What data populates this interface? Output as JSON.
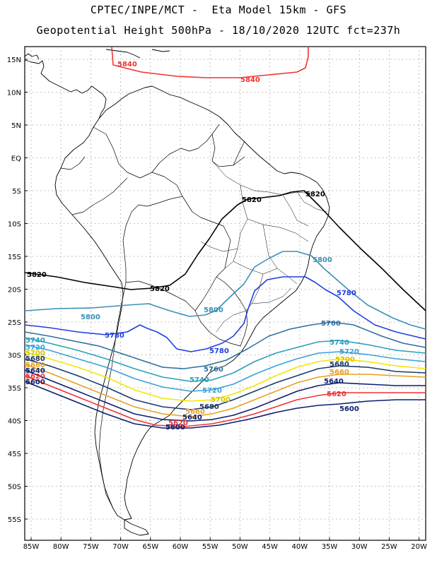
{
  "header": {
    "line1": "CPTEC/INPE/MCT -  Eta Model 15km - GFS",
    "line2": "Geopotential Height 500hPa - 18/10/2020 12UTC fct=237h"
  },
  "axes": {
    "lat_labels": [
      "15N",
      "10N",
      "5N",
      "EQ",
      "5S",
      "10S",
      "15S",
      "20S",
      "25S",
      "30S",
      "35S",
      "40S",
      "45S",
      "50S",
      "55S"
    ],
    "lon_labels": [
      "85W",
      "80W",
      "75W",
      "70W",
      "65W",
      "60W",
      "55W",
      "50W",
      "45W",
      "40W",
      "35W",
      "30W",
      "25W",
      "20W"
    ]
  },
  "contours": [
    {
      "value": 5840,
      "color": "#ee3333",
      "labels": [
        "5840",
        "5840"
      ]
    },
    {
      "value": 5820,
      "color": "#000000",
      "labels": [
        "5820",
        "5820",
        "5820",
        "5820"
      ]
    },
    {
      "value": 5800,
      "color": "#3a8fb7",
      "labels": [
        "5800",
        "5800",
        "5800"
      ]
    },
    {
      "value": 5780,
      "color": "#1f3fe0",
      "labels": [
        "5780",
        "5780",
        "5780"
      ]
    },
    {
      "value": 5760,
      "color": "#2e6f9e",
      "labels": [
        "5760",
        "5760"
      ]
    },
    {
      "value": 5740,
      "color": "#2a9fb8",
      "labels": [
        "5740",
        "5740",
        "5740"
      ]
    },
    {
      "value": 5720,
      "color": "#3aa0d8",
      "labels": [
        "5720",
        "5720",
        "5720"
      ]
    },
    {
      "value": 5700,
      "color": "#f2e600",
      "labels": [
        "5700",
        "5700",
        "5700"
      ]
    },
    {
      "value": 5680,
      "color": "#1a3a6a",
      "labels": [
        "5680",
        "5680",
        "5680"
      ]
    },
    {
      "value": 5660,
      "color": "#e8a020",
      "labels": [
        "5660",
        "5660",
        "5660"
      ]
    },
    {
      "value": 5640,
      "color": "#0a1e6e",
      "labels": [
        "5640",
        "5640",
        "5640"
      ]
    },
    {
      "value": 5620,
      "color": "#ee3333",
      "labels": [
        "5620",
        "5620",
        "5620"
      ]
    },
    {
      "value": 5600,
      "color": "#0a1e6e",
      "labels": [
        "5600",
        "5600",
        "5600"
      ]
    }
  ]
}
